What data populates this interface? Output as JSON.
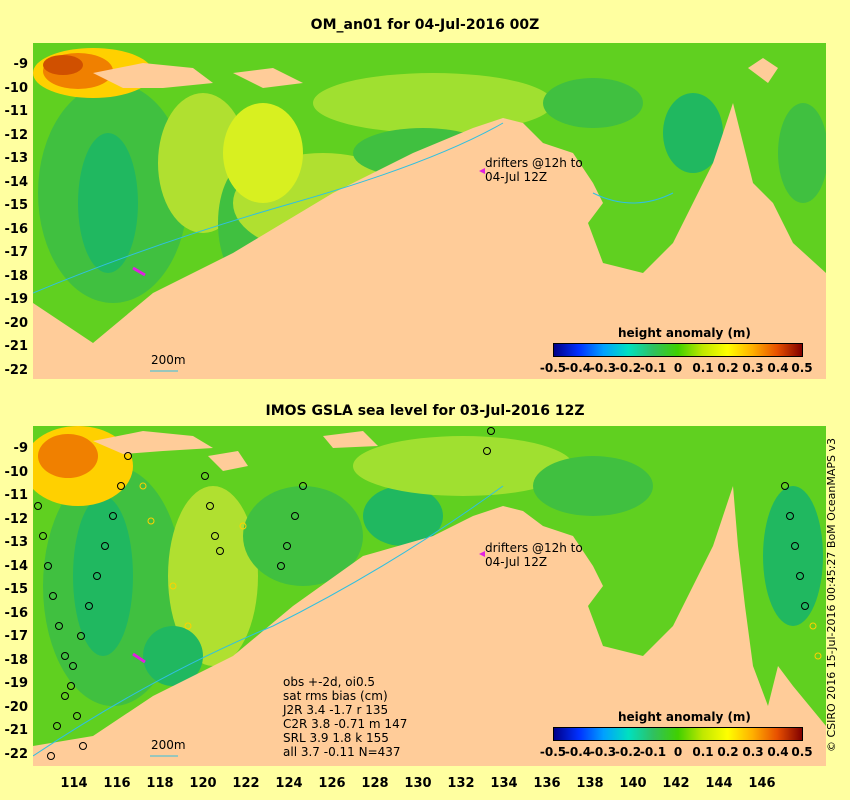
{
  "top_panel": {
    "title": "OM_an01 for 04-Jul-2016 00Z",
    "drifter_note": [
      "drifters @12h to",
      "04-Jul 12Z"
    ],
    "isobath_label": "200m",
    "colorbar_title": "height anomaly (m)"
  },
  "bottom_panel": {
    "title": "IMOS GSLA sea level  for 03-Jul-2016 12Z",
    "drifter_note": [
      "drifters @12h to",
      "04-Jul 12Z"
    ],
    "isobath_label": "200m",
    "colorbar_title": "height anomaly (m)",
    "stats": [
      "obs +-2d, oi0.5",
      "sat rms bias (cm)",
      "J2R   3.4 -1.7 r 135",
      "C2R   3.8 -0.71 m 147",
      "SRL   3.9 1.8 k 155",
      "all   3.7 -0.11 N=437"
    ]
  },
  "colorbar_ticks": [
    "-0.5",
    "-0.4",
    "-0.3",
    "-0.2",
    "-0.1",
    "0",
    "0.1",
    "0.2",
    "0.3",
    "0.4",
    "0.5"
  ],
  "lat_labels": [
    "-9",
    "-10",
    "-11",
    "-12",
    "-13",
    "-14",
    "-15",
    "-16",
    "-17",
    "-18",
    "-19",
    "-20",
    "-21",
    "-22"
  ],
  "lon_labels": [
    "114",
    "116",
    "118",
    "120",
    "122",
    "124",
    "126",
    "128",
    "130",
    "132",
    "134",
    "136",
    "138",
    "140",
    "142",
    "144",
    "146"
  ],
  "credit": "© CSIRO 2016  15-Jul-2016 00:45:27 BoM OceanMAPS v3",
  "colors": {
    "background": "#ffffa0",
    "land": "#ffcc99",
    "ocean_base": "#60d020",
    "drifter": "#e020e0",
    "isobath": "#30c0e0"
  }
}
